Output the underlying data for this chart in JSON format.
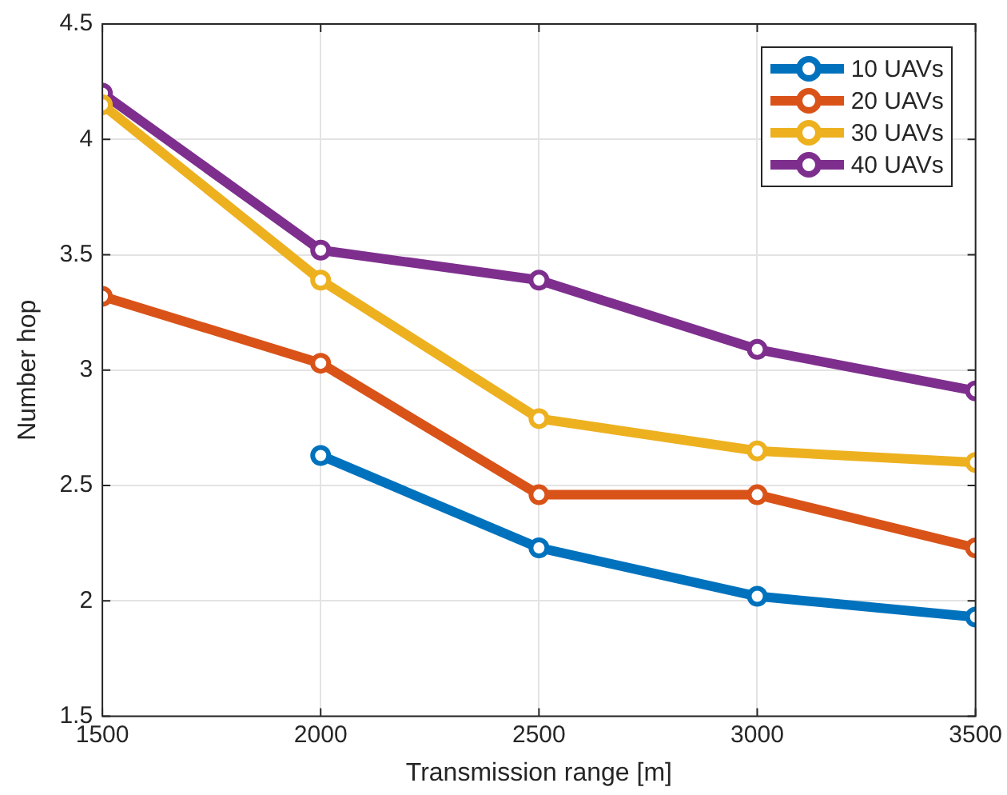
{
  "chart_data": {
    "type": "line",
    "xlabel": "Transmission range [m]",
    "ylabel": "Number hop",
    "x": [
      1500,
      2000,
      2500,
      3000,
      3500
    ],
    "series": [
      {
        "name": "10 UAVs",
        "color": "#0072bd",
        "values": [
          null,
          2.63,
          2.23,
          2.02,
          1.93
        ]
      },
      {
        "name": "20 UAVs",
        "color": "#d95319",
        "values": [
          3.32,
          3.03,
          2.46,
          2.46,
          2.23
        ]
      },
      {
        "name": "30 UAVs",
        "color": "#edb120",
        "values": [
          4.15,
          3.39,
          2.79,
          2.65,
          2.6
        ]
      },
      {
        "name": "40 UAVs",
        "color": "#7e2f8e",
        "values": [
          4.2,
          3.52,
          3.39,
          3.09,
          2.91
        ]
      }
    ],
    "xlim": [
      1500,
      3500
    ],
    "xticks": [
      1500,
      2000,
      2500,
      3000,
      3500
    ],
    "ylim": [
      1.5,
      4.5
    ],
    "yticks": [
      1.5,
      2,
      2.5,
      3,
      3.5,
      4,
      4.5
    ],
    "grid": true,
    "legend": "top right",
    "marker": "circle",
    "line_style": "solid"
  }
}
